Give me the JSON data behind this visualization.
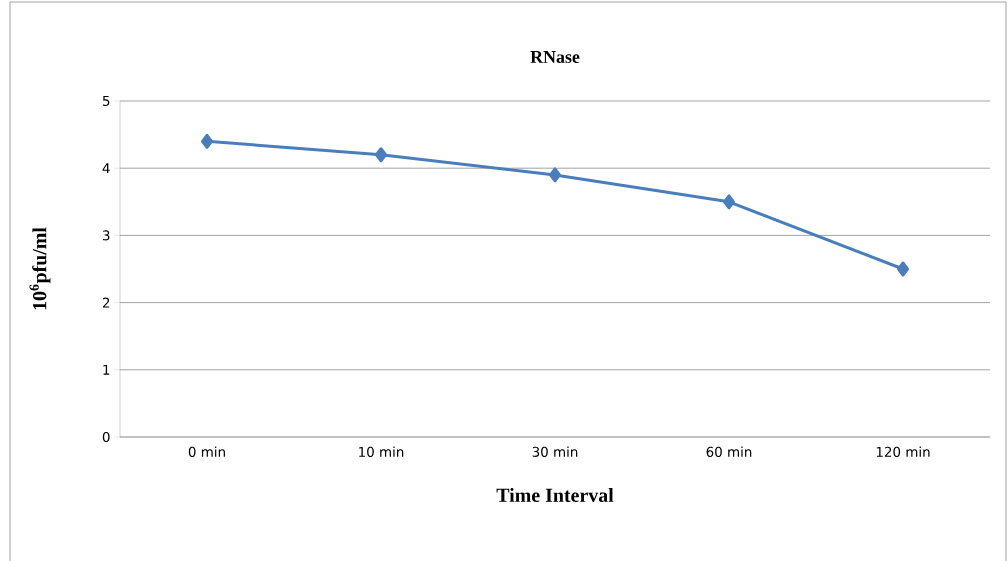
{
  "chart_data": {
    "type": "line",
    "title": "RNase",
    "xlabel": "Time Interval",
    "ylabel": "10$^{6}$pfu/ml",
    "categories": [
      "0 min",
      "10 min",
      "30 min",
      "60 min",
      "120 min"
    ],
    "series": [
      {
        "color": "#4a7ebb",
        "values": [
          4.4,
          4.2,
          3.9,
          3.5,
          2.5
        ]
      }
    ],
    "ylim": [
      0,
      5
    ],
    "yticks": [
      0,
      1,
      2,
      3,
      4,
      5
    ],
    "grid": "y",
    "marker": "diamond",
    "line_style": "solid"
  }
}
